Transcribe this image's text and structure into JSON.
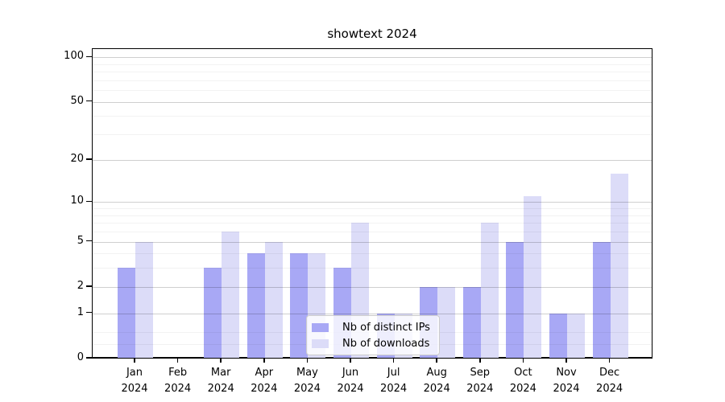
{
  "chart_data": {
    "type": "bar",
    "title": "showtext 2024",
    "x_labels": [
      [
        "Jan",
        "2024"
      ],
      [
        "Feb",
        "2024"
      ],
      [
        "Mar",
        "2024"
      ],
      [
        "Apr",
        "2024"
      ],
      [
        "May",
        "2024"
      ],
      [
        "Jun",
        "2024"
      ],
      [
        "Jul",
        "2024"
      ],
      [
        "Aug",
        "2024"
      ],
      [
        "Sep",
        "2024"
      ],
      [
        "Oct",
        "2024"
      ],
      [
        "Nov",
        "2024"
      ],
      [
        "Dec",
        "2024"
      ]
    ],
    "series": [
      {
        "name": "Nb of distinct IPs",
        "color": "#a8a8f5",
        "values": [
          3,
          0,
          3,
          4,
          4,
          3,
          1,
          2,
          2,
          5,
          1,
          5
        ]
      },
      {
        "name": "Nb of downloads",
        "color": "#dcdcf8",
        "values": [
          5,
          0,
          6,
          5,
          4,
          7,
          1,
          2,
          7,
          11,
          1,
          16
        ]
      }
    ],
    "y_scale": "log1p",
    "y_axis": {
      "major_ticks": [
        0,
        1,
        2,
        5,
        10,
        20,
        50,
        100
      ],
      "minor_gridlines": [
        0.25,
        0.5,
        3,
        4,
        6,
        7,
        8,
        9,
        30,
        40,
        60,
        70,
        80,
        90
      ],
      "top_value": 113
    },
    "grid": "on",
    "legend_position": "bottom-center"
  }
}
